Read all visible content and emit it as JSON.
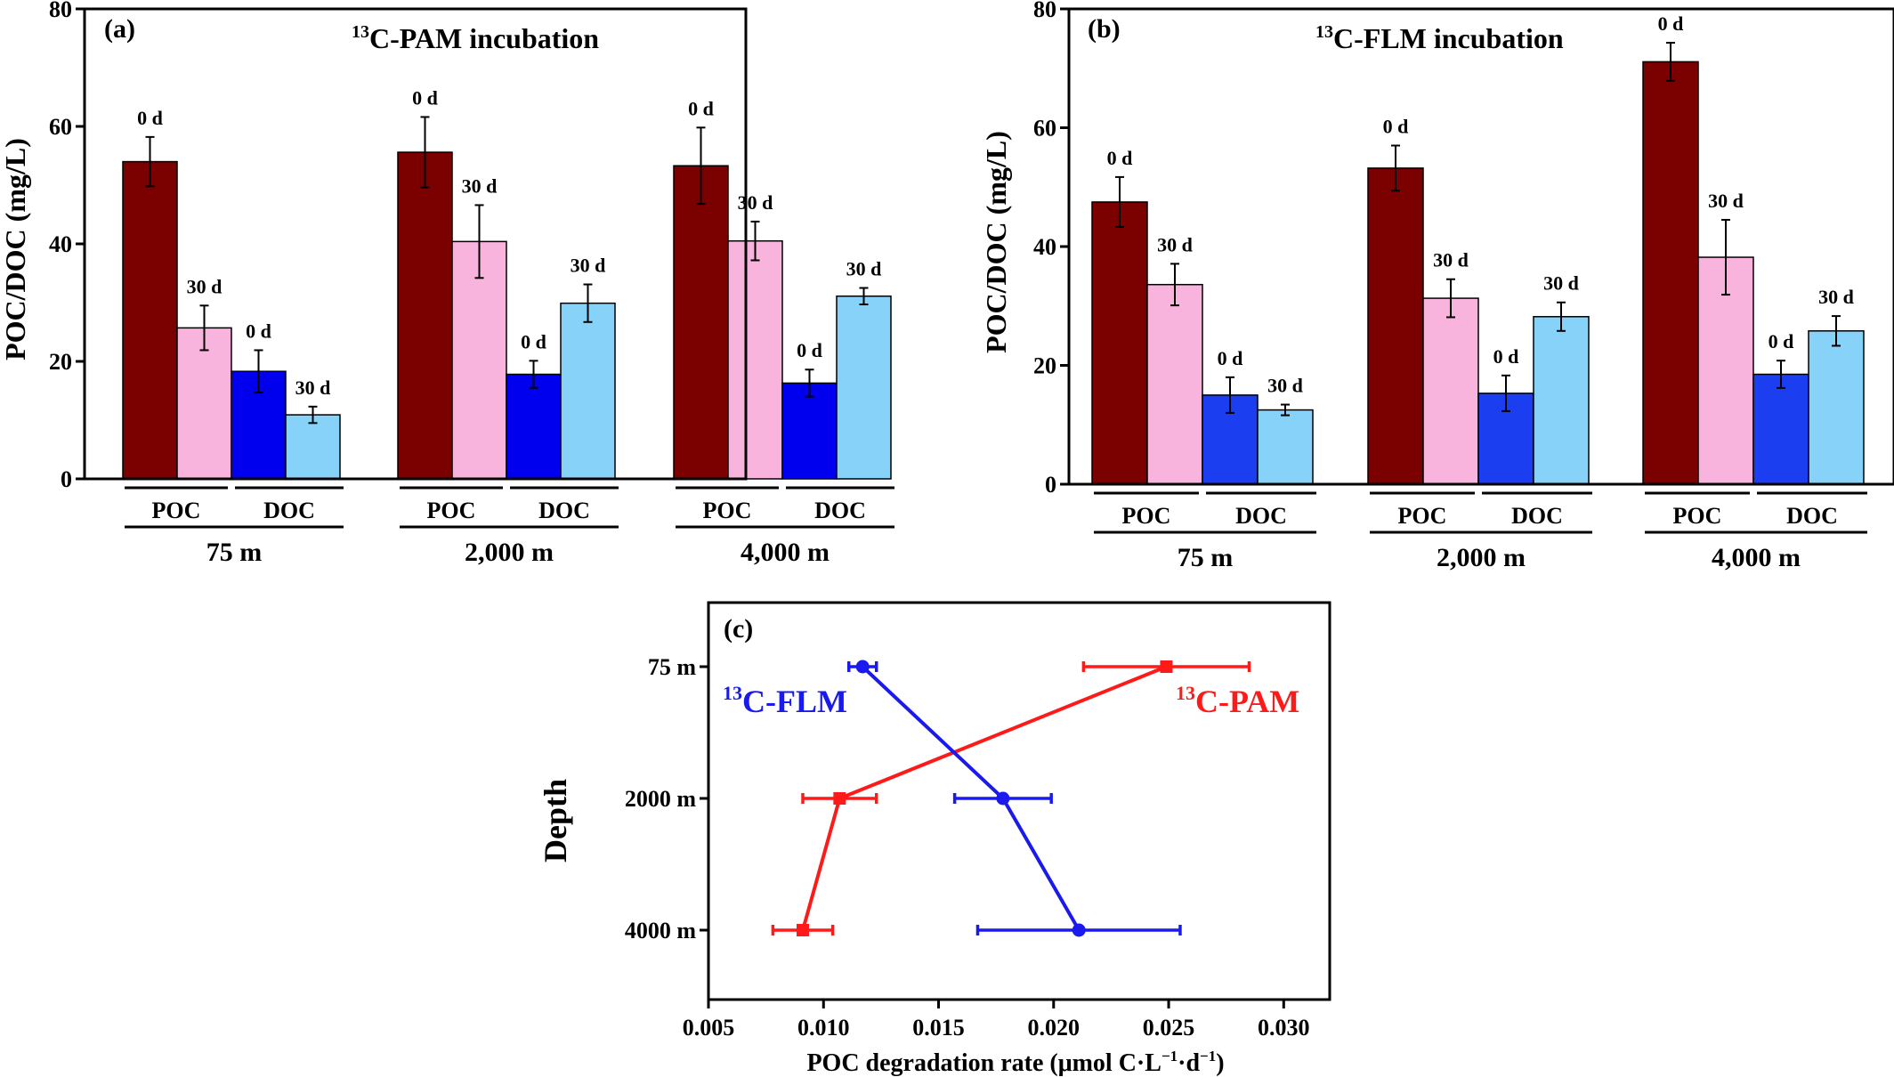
{
  "figure": {
    "panel_a": {
      "label": "(a)",
      "title_sup": "13",
      "title_main": "C-PAM incubation",
      "ylabel": "POC/DOC (mg/L)"
    },
    "panel_b": {
      "label": "(b)",
      "title_sup": "13",
      "title_main": "C-FLM incubation",
      "ylabel": "POC/DOC (mg/L)"
    },
    "panel_c": {
      "label": "(c)",
      "xlabel_main": "POC degradation rate (μmol C·L",
      "xlabel_sup1": "−1",
      "xlabel_mid": "·d",
      "xlabel_sup2": "−1",
      "xlabel_end": ")",
      "ylabel": "Depth",
      "pam_sup": "13",
      "pam_main": "C-PAM",
      "flm_sup": "13",
      "flm_main": "C-FLM"
    }
  },
  "chart_data": [
    {
      "type": "bar",
      "panel": "a",
      "ylim": [
        0,
        80
      ],
      "yticks": [
        "0",
        "20",
        "40",
        "60",
        "80"
      ],
      "depth_groups": [
        "75 m",
        "2,000 m",
        "4,000 m"
      ],
      "sub_groups": [
        "POC",
        "DOC"
      ],
      "bar_labels": [
        "0 d",
        "30 d",
        "0 d",
        "30 d"
      ],
      "colors": [
        "#7b0000",
        "#f9b4dd",
        "#0000ee",
        "#86d2f8"
      ],
      "values": [
        [
          54.0,
          25.7,
          18.3,
          10.9
        ],
        [
          55.6,
          40.4,
          17.8,
          29.9
        ],
        [
          53.3,
          40.5,
          16.3,
          31.1
        ]
      ],
      "errors": [
        [
          4.2,
          3.8,
          3.6,
          1.4
        ],
        [
          6.0,
          6.2,
          2.3,
          3.2
        ],
        [
          6.5,
          3.3,
          2.3,
          1.4
        ]
      ]
    },
    {
      "type": "bar",
      "panel": "b",
      "ylim": [
        0,
        80
      ],
      "yticks": [
        "0",
        "20",
        "40",
        "60",
        "80"
      ],
      "depth_groups": [
        "75 m",
        "2,000 m",
        "4,000 m"
      ],
      "sub_groups": [
        "POC",
        "DOC"
      ],
      "bar_labels": [
        "0 d",
        "30 d",
        "0 d",
        "30 d"
      ],
      "colors": [
        "#7b0000",
        "#f9b4dd",
        "#1b3ff0",
        "#86d2f8"
      ],
      "values": [
        [
          47.5,
          33.6,
          15.0,
          12.5
        ],
        [
          53.2,
          31.3,
          15.3,
          28.2
        ],
        [
          71.1,
          38.2,
          18.5,
          25.8
        ]
      ],
      "errors": [
        [
          4.2,
          3.5,
          3.0,
          0.9
        ],
        [
          3.8,
          3.2,
          3.0,
          2.4
        ],
        [
          3.2,
          6.3,
          2.3,
          2.5
        ]
      ]
    },
    {
      "type": "line",
      "panel": "c",
      "xlim": [
        0.005,
        0.032
      ],
      "xticks": [
        "0.005",
        "0.010",
        "0.015",
        "0.020",
        "0.025",
        "0.030"
      ],
      "categories": [
        "75 m",
        "2000 m",
        "4000 m"
      ],
      "series": [
        {
          "name": "13C-PAM",
          "color": "#ff1a1a",
          "marker": "square",
          "values": [
            0.0249,
            0.0107,
            0.0091
          ],
          "errors": [
            0.0036,
            0.0016,
            0.0013
          ]
        },
        {
          "name": "13C-FLM",
          "color": "#1a1aee",
          "marker": "circle",
          "values": [
            0.0117,
            0.0178,
            0.0211
          ],
          "errors": [
            0.0006,
            0.0021,
            0.0044
          ]
        }
      ]
    }
  ]
}
